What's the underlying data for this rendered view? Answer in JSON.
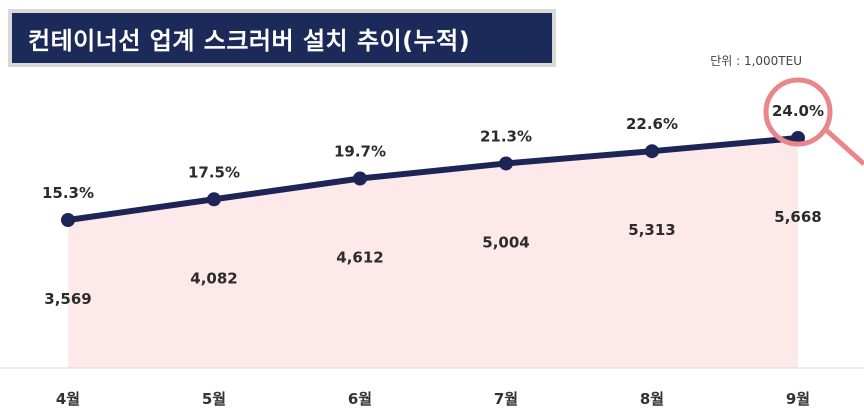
{
  "title": "컨테이너선 업계 스크러버 설치 추이(누적)",
  "unit_label": "단위 : 1,000TEU",
  "colors": {
    "title_bg": "#1b2a59",
    "line": "#1d2456",
    "area": "#fde8ea",
    "highlight": "#e8868c"
  },
  "chart_data": {
    "type": "line",
    "categories": [
      "4월",
      "5월",
      "6월",
      "7월",
      "8월",
      "9월"
    ],
    "series": [
      {
        "values": [
          15.3,
          17.5,
          19.7,
          21.3,
          22.6,
          24.0
        ],
        "labels": [
          "15.3%",
          "17.5%",
          "19.7%",
          "21.3%",
          "22.6%",
          "24.0%"
        ]
      }
    ],
    "bar_values": [
      3569,
      4082,
      4612,
      5004,
      5313,
      5668
    ],
    "bar_labels": [
      "3,569",
      "4,082",
      "4,612",
      "5,004",
      "5,313",
      "5,668"
    ],
    "highlight_index": 5,
    "area_fill": true,
    "grid": false,
    "title": "컨테이너선 업계 스크러버 설치 추이(누적)",
    "xlabel": "",
    "ylabel": ""
  }
}
